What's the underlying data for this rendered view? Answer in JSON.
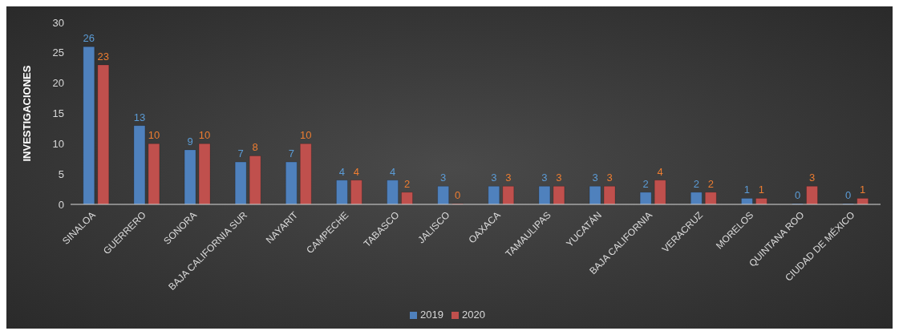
{
  "chart_data": {
    "type": "bar",
    "ylabel": "INVESTIGACIONES",
    "categories": [
      "SINALOA",
      "GUERRERO",
      "SONORA",
      "BAJA CALIFORNIA SUR",
      "NAYARIT",
      "CAMPECHE",
      "TABASCO",
      "JALISCO",
      "OAXACA",
      "TAMAULIPAS",
      "YUCATÁN",
      "BAJA CALIFORNIA",
      "VERACRUZ",
      "MORELOS",
      "QUINTANA ROO",
      "CIUDAD DE MÉXICO"
    ],
    "series": [
      {
        "name": "2019",
        "color": "#4f81bd",
        "values": [
          26,
          13,
          9,
          7,
          7,
          4,
          4,
          3,
          3,
          3,
          3,
          2,
          2,
          1,
          0,
          0
        ]
      },
      {
        "name": "2020",
        "color": "#c0504d",
        "values": [
          23,
          10,
          10,
          8,
          10,
          4,
          2,
          0,
          3,
          3,
          3,
          4,
          2,
          1,
          3,
          1
        ]
      }
    ],
    "ylim": [
      0,
      30
    ],
    "yticks": [
      0,
      5,
      10,
      15,
      20,
      25,
      30
    ],
    "legend": "bottom",
    "data_labels": true
  }
}
